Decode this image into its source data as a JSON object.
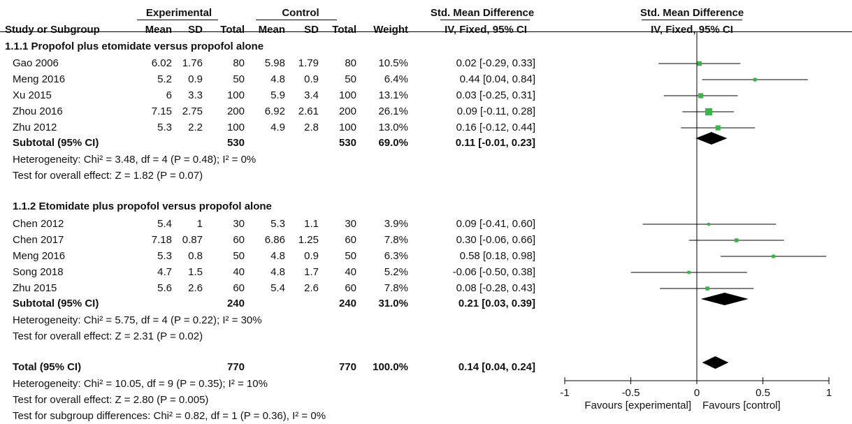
{
  "header": {
    "group1": "Experimental",
    "group2": "Control",
    "smd_title_table": "Std. Mean Difference",
    "smd_title_plot": "Std. Mean Difference",
    "method_table": "IV, Fixed, 95% CI",
    "method_plot": "IV, Fixed, 95% CI",
    "cols": {
      "study": "Study or Subgroup",
      "mean": "Mean",
      "sd": "SD",
      "total": "Total",
      "weight": "Weight"
    }
  },
  "subgroups": [
    {
      "title": "1.1.1 Propofol plus etomidate versus propofol alone",
      "studies": [
        {
          "name": "Gao 2006",
          "m1": "6.02",
          "sd1": "1.76",
          "n1": "80",
          "m2": "5.98",
          "sd2": "1.79",
          "n2": "80",
          "weight": "10.5%",
          "ci": "0.02 [-0.29, 0.33]"
        },
        {
          "name": "Meng 2016",
          "m1": "5.2",
          "sd1": "0.9",
          "n1": "50",
          "m2": "4.8",
          "sd2": "0.9",
          "n2": "50",
          "weight": "6.4%",
          "ci": "0.44 [0.04, 0.84]"
        },
        {
          "name": "Xu 2015",
          "m1": "6",
          "sd1": "3.3",
          "n1": "100",
          "m2": "5.9",
          "sd2": "3.4",
          "n2": "100",
          "weight": "13.1%",
          "ci": "0.03 [-0.25, 0.31]"
        },
        {
          "name": "Zhou 2016",
          "m1": "7.15",
          "sd1": "2.75",
          "n1": "200",
          "m2": "6.92",
          "sd2": "2.61",
          "n2": "200",
          "weight": "26.1%",
          "ci": "0.09 [-0.11, 0.28]"
        },
        {
          "name": "Zhu 2012",
          "m1": "5.3",
          "sd1": "2.2",
          "n1": "100",
          "m2": "4.9",
          "sd2": "2.8",
          "n2": "100",
          "weight": "13.0%",
          "ci": "0.16 [-0.12, 0.44]"
        }
      ],
      "subtotal": {
        "label": "Subtotal (95% CI)",
        "n1": "530",
        "n2": "530",
        "weight": "69.0%",
        "ci": "0.11 [-0.01, 0.23]"
      },
      "heterogeneity": "Heterogeneity: Chi² = 3.48, df = 4 (P = 0.48); I² = 0%",
      "overall": "Test for overall effect: Z = 1.82 (P = 0.07)"
    },
    {
      "title": "1.1.2 Etomidate plus propofol versus propofol alone",
      "studies": [
        {
          "name": "Chen 2012",
          "m1": "5.4",
          "sd1": "1",
          "n1": "30",
          "m2": "5.3",
          "sd2": "1.1",
          "n2": "30",
          "weight": "3.9%",
          "ci": "0.09 [-0.41, 0.60]"
        },
        {
          "name": "Chen 2017",
          "m1": "7.18",
          "sd1": "0.87",
          "n1": "60",
          "m2": "6.86",
          "sd2": "1.25",
          "n2": "60",
          "weight": "7.8%",
          "ci": "0.30 [-0.06, 0.66]"
        },
        {
          "name": "Meng 2016",
          "m1": "5.3",
          "sd1": "0.8",
          "n1": "50",
          "m2": "4.8",
          "sd2": "0.9",
          "n2": "50",
          "weight": "6.3%",
          "ci": "0.58 [0.18, 0.98]"
        },
        {
          "name": "Song 2018",
          "m1": "4.7",
          "sd1": "1.5",
          "n1": "40",
          "m2": "4.8",
          "sd2": "1.7",
          "n2": "40",
          "weight": "5.2%",
          "ci": "-0.06 [-0.50, 0.38]"
        },
        {
          "name": "Zhu 2015",
          "m1": "5.6",
          "sd1": "2.6",
          "n1": "60",
          "m2": "5.4",
          "sd2": "2.6",
          "n2": "60",
          "weight": "7.8%",
          "ci": "0.08 [-0.28, 0.43]"
        }
      ],
      "subtotal": {
        "label": "Subtotal (95% CI)",
        "n1": "240",
        "n2": "240",
        "weight": "31.0%",
        "ci": "0.21 [0.03, 0.39]"
      },
      "heterogeneity": "Heterogeneity: Chi² = 5.75, df = 4 (P = 0.22); I² = 30%",
      "overall": "Test for overall effect: Z = 2.31 (P = 0.02)"
    }
  ],
  "total": {
    "label": "Total (95% CI)",
    "n1": "770",
    "n2": "770",
    "weight": "100.0%",
    "ci": "0.14 [0.04, 0.24]"
  },
  "footer": {
    "heterogeneity": "Heterogeneity: Chi² = 10.05, df = 9 (P = 0.35); I² = 10%",
    "overall": "Test for overall effect: Z = 2.80 (P = 0.005)",
    "subgroup_diff": "Test for subgroup differences: Chi² = 0.82, df = 1 (P = 0.36), I² = 0%"
  },
  "chart_data": {
    "type": "scatter",
    "x_range": [
      -1,
      1
    ],
    "x_ticks": [
      "-1",
      "-0.5",
      "0",
      "0.5",
      "1"
    ],
    "x_tick_values": [
      -1,
      -0.5,
      0,
      0.5,
      1
    ],
    "favours_left": "Favours [experimental]",
    "favours_right": "Favours [control]",
    "marker_color": "#3cb44b",
    "diamond_color": "#000000",
    "studies": [
      {
        "name": "Gao 2006",
        "est": 0.02,
        "lo": -0.29,
        "hi": 0.33,
        "weight": 10.5
      },
      {
        "name": "Meng 2016",
        "est": 0.44,
        "lo": 0.04,
        "hi": 0.84,
        "weight": 6.4
      },
      {
        "name": "Xu 2015",
        "est": 0.03,
        "lo": -0.25,
        "hi": 0.31,
        "weight": 13.1
      },
      {
        "name": "Zhou 2016",
        "est": 0.09,
        "lo": -0.11,
        "hi": 0.28,
        "weight": 26.1
      },
      {
        "name": "Zhu 2012",
        "est": 0.16,
        "lo": -0.12,
        "hi": 0.44,
        "weight": 13.0
      },
      {
        "name": "Chen 2012",
        "est": 0.09,
        "lo": -0.41,
        "hi": 0.6,
        "weight": 3.9
      },
      {
        "name": "Chen 2017",
        "est": 0.3,
        "lo": -0.06,
        "hi": 0.66,
        "weight": 7.8
      },
      {
        "name": "Meng 2016",
        "est": 0.58,
        "lo": 0.18,
        "hi": 0.98,
        "weight": 6.3
      },
      {
        "name": "Song 2018",
        "est": -0.06,
        "lo": -0.5,
        "hi": 0.38,
        "weight": 5.2
      },
      {
        "name": "Zhu 2015",
        "est": 0.08,
        "lo": -0.28,
        "hi": 0.43,
        "weight": 7.8
      }
    ],
    "summaries": [
      {
        "name": "Subtotal 1.1.1",
        "est": 0.11,
        "lo": -0.01,
        "hi": 0.23
      },
      {
        "name": "Subtotal 1.1.2",
        "est": 0.21,
        "lo": 0.03,
        "hi": 0.39
      },
      {
        "name": "Total",
        "est": 0.14,
        "lo": 0.04,
        "hi": 0.24
      }
    ]
  }
}
